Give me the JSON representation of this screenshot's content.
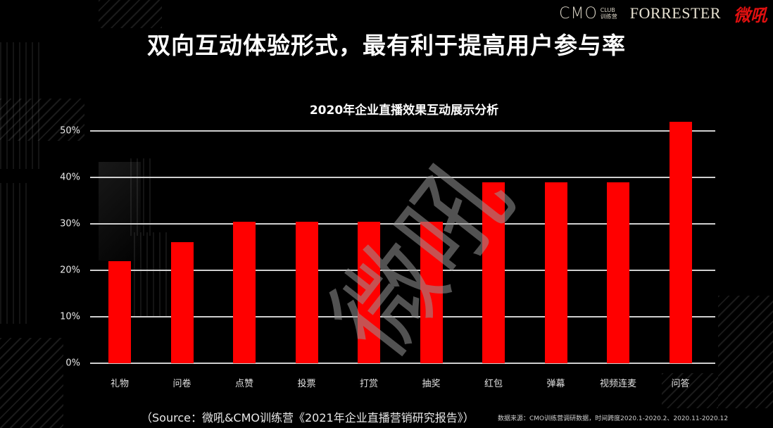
{
  "logos": {
    "cmo_main": "CMO",
    "cmo_sub_top": "CLUB",
    "cmo_sub_bottom": "训练营",
    "forrester": "FORRESTER",
    "vhall": "微吼"
  },
  "headline": "双向互动体验形式，最有利于提高用户参与率",
  "watermark": "微吼",
  "source": "（Source：微吼&CMO训练营《2021年企业直播营销研究报告》）",
  "note": "数据来源：CMO训练营调研数据，时间跨度2020.1-2020.2、2020.11-2020.12",
  "colors": {
    "bar": "#ff0000",
    "background": "#000000",
    "grid": "#cfcfcf"
  },
  "chart_data": {
    "type": "bar",
    "title": "2020年企业直播效果互动展示分析",
    "xlabel": "",
    "ylabel": "",
    "ylim": [
      0,
      50
    ],
    "yticks": [
      "0%",
      "10%",
      "20%",
      "30%",
      "40%",
      "50%"
    ],
    "grid": true,
    "legend": null,
    "categories": [
      "礼物",
      "问卷",
      "点赞",
      "投票",
      "打赏",
      "抽奖",
      "红包",
      "弹幕",
      "视频连麦",
      "问答"
    ],
    "values": [
      22,
      26,
      30.5,
      30.5,
      30.5,
      30.5,
      39,
      39,
      39,
      52
    ],
    "unit": "%"
  }
}
